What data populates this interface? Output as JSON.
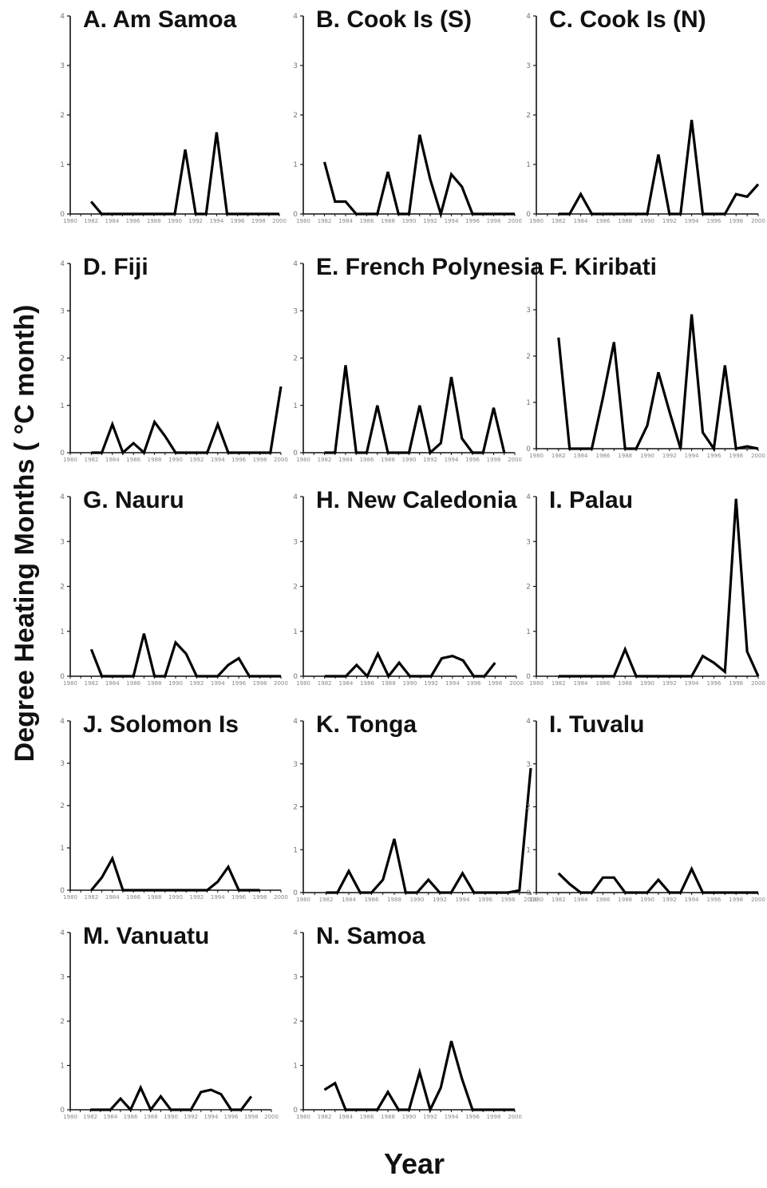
{
  "figure": {
    "ylabel": "Degree Heating Months ( °C month)",
    "xlabel": "Year"
  },
  "chart_data": [
    {
      "type": "line",
      "title": "A. Am Samoa",
      "categories": [
        "1980",
        "1981",
        "1982",
        "1983",
        "1984",
        "1985",
        "1986",
        "1987",
        "1988",
        "1989",
        "1990",
        "1991",
        "1992",
        "1993",
        "1994",
        "1995",
        "1996",
        "1997",
        "1998",
        "1999",
        "2000"
      ],
      "x_ticks": [
        "1980",
        "1982",
        "1984",
        "1986",
        "1988",
        "1990",
        "1992",
        "1994",
        "1996",
        "1998",
        "2000"
      ],
      "y_ticks": [
        "0",
        "1",
        "2",
        "3",
        "4"
      ],
      "ylim": [
        0,
        4
      ],
      "values": [
        null,
        null,
        0.25,
        0,
        0,
        0,
        0,
        0,
        0,
        0,
        0,
        1.3,
        0,
        0,
        1.65,
        0,
        0,
        0,
        0,
        0,
        0
      ]
    },
    {
      "type": "line",
      "title": "B. Cook Is (S)",
      "categories": [
        "1980",
        "1981",
        "1982",
        "1983",
        "1984",
        "1985",
        "1986",
        "1987",
        "1988",
        "1989",
        "1990",
        "1991",
        "1992",
        "1993",
        "1994",
        "1995",
        "1996",
        "1997",
        "1998",
        "1999",
        "2000"
      ],
      "x_ticks": [
        "1980",
        "1982",
        "1984",
        "1986",
        "1988",
        "1990",
        "1992",
        "1994",
        "1996",
        "1998",
        "2000"
      ],
      "y_ticks": [
        "0",
        "1",
        "2",
        "3",
        "4"
      ],
      "ylim": [
        0,
        4
      ],
      "values": [
        null,
        null,
        1.05,
        0.25,
        0.25,
        0,
        0,
        0,
        0.85,
        0,
        0,
        1.6,
        0.7,
        0,
        0.8,
        0.55,
        0,
        0,
        0,
        0,
        0
      ]
    },
    {
      "type": "line",
      "title": "C. Cook Is (N)",
      "categories": [
        "1980",
        "1981",
        "1982",
        "1983",
        "1984",
        "1985",
        "1986",
        "1987",
        "1988",
        "1989",
        "1990",
        "1991",
        "1992",
        "1993",
        "1994",
        "1995",
        "1996",
        "1997",
        "1998",
        "1999",
        "2000"
      ],
      "x_ticks": [
        "1980",
        "1982",
        "1984",
        "1986",
        "1988",
        "1990",
        "1992",
        "1994",
        "1996",
        "1998",
        "2000"
      ],
      "y_ticks": [
        "0",
        "1",
        "2",
        "3",
        "4"
      ],
      "ylim": [
        0,
        4
      ],
      "values": [
        null,
        null,
        0,
        0,
        0.4,
        0,
        0,
        0,
        0,
        0,
        0,
        1.2,
        0,
        0,
        1.9,
        0,
        0,
        0,
        0.4,
        0.35,
        0.6
      ]
    },
    {
      "type": "line",
      "title": "D. Fiji",
      "categories": [
        "1980",
        "1981",
        "1982",
        "1983",
        "1984",
        "1985",
        "1986",
        "1987",
        "1988",
        "1989",
        "1990",
        "1991",
        "1992",
        "1993",
        "1994",
        "1995",
        "1996",
        "1997",
        "1998",
        "1999",
        "2000"
      ],
      "x_ticks": [
        "1980",
        "1982",
        "1984",
        "1986",
        "1988",
        "1990",
        "1992",
        "1994",
        "1996",
        "1998",
        "2000"
      ],
      "y_ticks": [
        "0",
        "1",
        "2",
        "3",
        "4"
      ],
      "ylim": [
        0,
        4
      ],
      "values": [
        null,
        null,
        0,
        0,
        0.6,
        0,
        0.2,
        0,
        0.65,
        0.35,
        0,
        0,
        0,
        0,
        0.6,
        0,
        0,
        0,
        0,
        0,
        1.4
      ]
    },
    {
      "type": "line",
      "title": "E. French Polynesia",
      "categories": [
        "1980",
        "1981",
        "1982",
        "1983",
        "1984",
        "1985",
        "1986",
        "1987",
        "1988",
        "1989",
        "1990",
        "1991",
        "1992",
        "1993",
        "1994",
        "1995",
        "1996",
        "1997",
        "1998",
        "1999",
        "2000"
      ],
      "x_ticks": [
        "1980",
        "1982",
        "1984",
        "1986",
        "1988",
        "1990",
        "1992",
        "1994",
        "1996",
        "1998",
        "2000"
      ],
      "y_ticks": [
        "0",
        "1",
        "2",
        "3",
        "4"
      ],
      "ylim": [
        0,
        4
      ],
      "values": [
        null,
        null,
        0,
        0,
        1.85,
        0,
        0,
        1.0,
        0,
        0,
        0,
        1.0,
        0,
        0.2,
        1.6,
        0.3,
        0,
        0,
        0.95,
        0,
        null
      ]
    },
    {
      "type": "line",
      "title": "F. Kiribati",
      "categories": [
        "1980",
        "1981",
        "1982",
        "1983",
        "1984",
        "1985",
        "1986",
        "1987",
        "1988",
        "1989",
        "1990",
        "1991",
        "1992",
        "1993",
        "1994",
        "1995",
        "1996",
        "1997",
        "1998",
        "1999",
        "2000"
      ],
      "x_ticks": [
        "1980",
        "1982",
        "1984",
        "1986",
        "1988",
        "1990",
        "1992",
        "1994",
        "1996",
        "1998",
        "2000"
      ],
      "y_ticks": [
        "0",
        "1",
        "2",
        "3"
      ],
      "ylim": [
        0,
        3
      ],
      "values": [
        null,
        null,
        2.4,
        0,
        0,
        0,
        1.1,
        2.3,
        0,
        0,
        0.5,
        1.65,
        0.8,
        0,
        2.9,
        0.35,
        0,
        1.8,
        0,
        0.05,
        0
      ]
    },
    {
      "type": "line",
      "title": "G. Nauru",
      "categories": [
        "1980",
        "1981",
        "1982",
        "1983",
        "1984",
        "1985",
        "1986",
        "1987",
        "1988",
        "1989",
        "1990",
        "1991",
        "1992",
        "1993",
        "1994",
        "1995",
        "1996",
        "1997",
        "1998",
        "1999",
        "2000"
      ],
      "x_ticks": [
        "1980",
        "1982",
        "1984",
        "1986",
        "1988",
        "1990",
        "1992",
        "1994",
        "1996",
        "1998",
        "2000"
      ],
      "y_ticks": [
        "0",
        "1",
        "2",
        "3",
        "4"
      ],
      "ylim": [
        0,
        4
      ],
      "values": [
        null,
        null,
        0.6,
        0,
        0,
        0,
        0,
        0.95,
        0,
        0,
        0.75,
        0.5,
        0,
        0,
        0,
        0.25,
        0.4,
        0,
        0,
        0,
        0
      ]
    },
    {
      "type": "line",
      "title": "H. New Caledonia",
      "categories": [
        "1980",
        "1981",
        "1982",
        "1983",
        "1984",
        "1985",
        "1986",
        "1987",
        "1988",
        "1989",
        "1990",
        "1991",
        "1992",
        "1993",
        "1994",
        "1995",
        "1996",
        "1997",
        "1998",
        "1999",
        "2000"
      ],
      "x_ticks": [
        "1980",
        "1982",
        "1984",
        "1986",
        "1988",
        "1990",
        "1992",
        "1994",
        "1996",
        "1998",
        "2000"
      ],
      "y_ticks": [
        "0",
        "1",
        "2",
        "3",
        "4"
      ],
      "ylim": [
        0,
        4
      ],
      "values": [
        null,
        null,
        0,
        0,
        0,
        0.25,
        0,
        0.5,
        0,
        0.3,
        0,
        0,
        0,
        0.4,
        0.45,
        0.35,
        0,
        0,
        0.3,
        null,
        null
      ]
    },
    {
      "type": "line",
      "title": "I. Palau",
      "categories": [
        "1980",
        "1981",
        "1982",
        "1983",
        "1984",
        "1985",
        "1986",
        "1987",
        "1988",
        "1989",
        "1990",
        "1991",
        "1992",
        "1993",
        "1994",
        "1995",
        "1996",
        "1997",
        "1998",
        "1999",
        "2000"
      ],
      "x_ticks": [
        "1980",
        "1982",
        "1984",
        "1986",
        "1988",
        "1990",
        "1992",
        "1994",
        "1996",
        "1998",
        "2000"
      ],
      "y_ticks": [
        "0",
        "1",
        "2",
        "3",
        "4"
      ],
      "ylim": [
        0,
        4
      ],
      "values": [
        null,
        null,
        0,
        0,
        0,
        0,
        0,
        0,
        0.6,
        0,
        0,
        0,
        0,
        0,
        0,
        0.45,
        0.3,
        0.1,
        3.95,
        0.55,
        0
      ]
    },
    {
      "type": "line",
      "title": "J. Solomon Is",
      "categories": [
        "1980",
        "1981",
        "1982",
        "1983",
        "1984",
        "1985",
        "1986",
        "1987",
        "1988",
        "1989",
        "1990",
        "1991",
        "1992",
        "1993",
        "1994",
        "1995",
        "1996",
        "1997",
        "1998",
        "1999",
        "2000"
      ],
      "x_ticks": [
        "1980",
        "1982",
        "1984",
        "1986",
        "1988",
        "1990",
        "1992",
        "1994",
        "1996",
        "1998",
        "2000"
      ],
      "y_ticks": [
        "0",
        "1",
        "2",
        "3",
        "4"
      ],
      "ylim": [
        0,
        4
      ],
      "values": [
        null,
        null,
        0,
        0.3,
        0.75,
        0,
        0,
        0,
        0,
        0,
        0,
        0,
        0,
        0,
        0.2,
        0.55,
        0,
        0,
        0,
        null,
        null
      ]
    },
    {
      "type": "line",
      "title": "K. Tonga",
      "categories": [
        "1980",
        "1981",
        "1982",
        "1983",
        "1984",
        "1985",
        "1986",
        "1987",
        "1988",
        "1989",
        "1990",
        "1991",
        "1992",
        "1993",
        "1994",
        "1995",
        "1996",
        "1997",
        "1998",
        "1999",
        "2000"
      ],
      "x_ticks": [
        "1980",
        "1982",
        "1984",
        "1986",
        "1988",
        "1990",
        "1992",
        "1994",
        "1996",
        "1998",
        "2000"
      ],
      "y_ticks": [
        "0",
        "1",
        "2",
        "3",
        "4"
      ],
      "ylim": [
        0,
        4
      ],
      "values": [
        null,
        null,
        0,
        0,
        0.5,
        0,
        0,
        0.3,
        1.25,
        0,
        0,
        0.3,
        0,
        0,
        0.45,
        0,
        0,
        0,
        0,
        0.05,
        2.9
      ]
    },
    {
      "type": "line",
      "title": "I. Tuvalu",
      "categories": [
        "1980",
        "1981",
        "1982",
        "1983",
        "1984",
        "1985",
        "1986",
        "1987",
        "1988",
        "1989",
        "1990",
        "1991",
        "1992",
        "1993",
        "1994",
        "1995",
        "1996",
        "1997",
        "1998",
        "1999",
        "2000"
      ],
      "x_ticks": [
        "1980",
        "1982",
        "1984",
        "1986",
        "1988",
        "1990",
        "1992",
        "1994",
        "1996",
        "1998",
        "2000"
      ],
      "y_ticks": [
        "0",
        "1",
        "2",
        "3",
        "4"
      ],
      "ylim": [
        0,
        4
      ],
      "values": [
        null,
        null,
        0.45,
        0.2,
        0,
        0,
        0.35,
        0.35,
        0,
        0,
        0,
        0.3,
        0,
        0,
        0.55,
        0,
        0,
        0,
        0,
        0,
        0
      ]
    },
    {
      "type": "line",
      "title": "M. Vanuatu",
      "categories": [
        "1980",
        "1981",
        "1982",
        "1983",
        "1984",
        "1985",
        "1986",
        "1987",
        "1988",
        "1989",
        "1990",
        "1991",
        "1992",
        "1993",
        "1994",
        "1995",
        "1996",
        "1997",
        "1998",
        "1999",
        "2000"
      ],
      "x_ticks": [
        "1980",
        "1982",
        "1984",
        "1986",
        "1988",
        "1990",
        "1992",
        "1994",
        "1996",
        "1998",
        "2000"
      ],
      "y_ticks": [
        "0",
        "1",
        "2",
        "3",
        "4"
      ],
      "ylim": [
        0,
        4
      ],
      "values": [
        null,
        null,
        0,
        0,
        0,
        0.25,
        0,
        0.5,
        0,
        0.3,
        0,
        0,
        0,
        0.4,
        0.45,
        0.35,
        0,
        0,
        0.3,
        null,
        null
      ]
    },
    {
      "type": "line",
      "title": "N. Samoa",
      "categories": [
        "1980",
        "1981",
        "1982",
        "1983",
        "1984",
        "1985",
        "1986",
        "1987",
        "1988",
        "1989",
        "1990",
        "1991",
        "1992",
        "1993",
        "1994",
        "1995",
        "1996",
        "1997",
        "1998",
        "1999",
        "2000"
      ],
      "x_ticks": [
        "1980",
        "1982",
        "1984",
        "1986",
        "1988",
        "1990",
        "1992",
        "1994",
        "1996",
        "1998",
        "2000"
      ],
      "y_ticks": [
        "0",
        "1",
        "2",
        "3",
        "4"
      ],
      "ylim": [
        0,
        4
      ],
      "values": [
        null,
        null,
        0.45,
        0.6,
        0,
        0,
        0,
        0,
        0.4,
        0,
        0,
        0.85,
        0,
        0.5,
        1.55,
        0.7,
        0,
        0,
        0,
        0,
        0
      ]
    }
  ]
}
